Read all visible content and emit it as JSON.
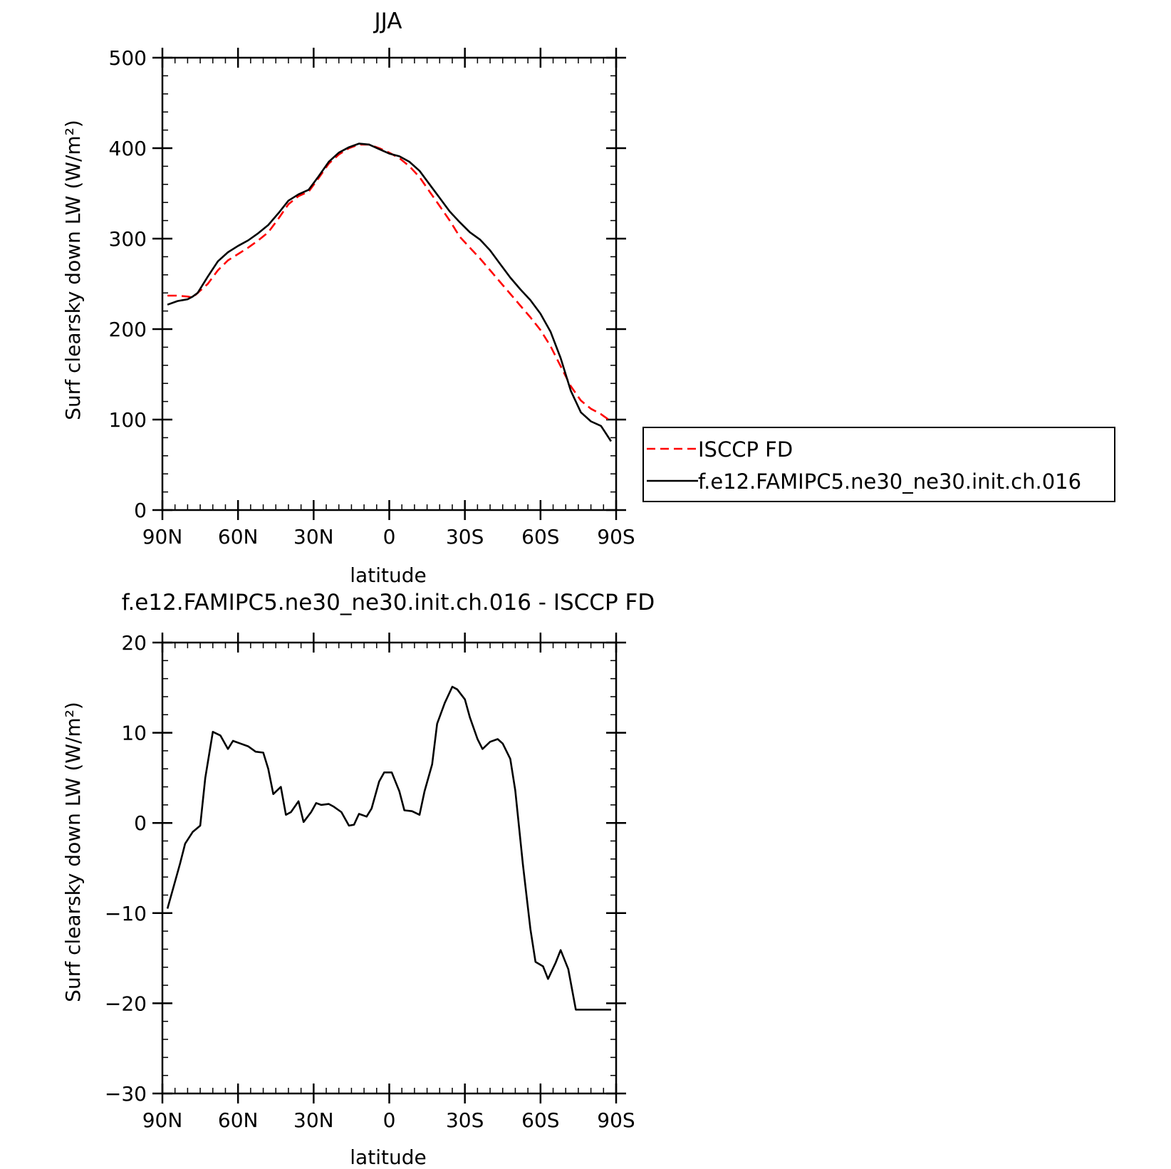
{
  "chart_data": [
    {
      "type": "line",
      "title": "JJA",
      "xlabel": "latitude",
      "ylabel": "Surf clearsky down LW (W/m²)",
      "xlim": [
        90,
        -90
      ],
      "ylim": [
        0,
        500
      ],
      "x_ticks": [
        90,
        60,
        30,
        0,
        -30,
        -60,
        -90
      ],
      "x_tick_labels": [
        "90N",
        "60N",
        "30N",
        "0",
        "30S",
        "60S",
        "90S"
      ],
      "y_ticks": [
        0,
        100,
        200,
        300,
        400,
        500
      ],
      "y_tick_labels": [
        "0",
        "100",
        "200",
        "300",
        "400",
        "500"
      ],
      "legend": "right",
      "series": [
        {
          "name": "ISCCP FD",
          "color": "#ff0000",
          "style": "dashed",
          "x": [
            88,
            84,
            80,
            78,
            76,
            72,
            68,
            64,
            60,
            56,
            52,
            48,
            44,
            40,
            36,
            32,
            28,
            24,
            20,
            16,
            12,
            8,
            4,
            0,
            -4,
            -8,
            -12,
            -16,
            -20,
            -24,
            -28,
            -32,
            -36,
            -40,
            -44,
            -48,
            -52,
            -56,
            -60,
            -64,
            -68,
            -72,
            -76,
            -80,
            -84,
            -88
          ],
          "y": [
            237,
            237,
            236,
            235,
            240,
            250,
            265,
            276,
            283,
            290,
            298,
            307,
            322,
            338,
            347,
            352,
            367,
            383,
            393,
            400,
            404,
            404,
            400,
            395,
            389,
            380,
            368,
            352,
            336,
            320,
            302,
            290,
            278,
            265,
            252,
            239,
            226,
            213,
            199,
            181,
            159,
            137,
            121,
            112,
            106,
            98
          ]
        },
        {
          "name": "f.e12.FAMIPC5.ne30_ne30.init.ch.016",
          "color": "#000000",
          "style": "solid",
          "x": [
            88,
            84,
            80,
            78,
            76,
            72,
            68,
            64,
            60,
            56,
            52,
            48,
            44,
            40,
            36,
            32,
            28,
            24,
            20,
            16,
            12,
            8,
            4,
            0,
            -4,
            -8,
            -12,
            -16,
            -20,
            -24,
            -28,
            -32,
            -36,
            -40,
            -44,
            -48,
            -52,
            -56,
            -60,
            -64,
            -68,
            -72,
            -76,
            -80,
            -84,
            -88
          ],
          "y": [
            227,
            231,
            233,
            236,
            240,
            258,
            275,
            285,
            292,
            298,
            306,
            315,
            328,
            342,
            349,
            354,
            369,
            385,
            395,
            401,
            405,
            404,
            399,
            394,
            391,
            385,
            375,
            360,
            345,
            330,
            318,
            307,
            299,
            287,
            272,
            257,
            244,
            232,
            217,
            197,
            168,
            132,
            108,
            98,
            93,
            76
          ]
        }
      ]
    },
    {
      "type": "line",
      "title": "f.e12.FAMIPC5.ne30_ne30.init.ch.016 - ISCCP FD",
      "xlabel": "latitude",
      "ylabel": "Surf clearsky down LW (W/m²)",
      "xlim": [
        90,
        -90
      ],
      "ylim": [
        -30,
        20
      ],
      "x_ticks": [
        90,
        60,
        30,
        0,
        -30,
        -60,
        -90
      ],
      "x_tick_labels": [
        "90N",
        "60N",
        "30N",
        "0",
        "30S",
        "60S",
        "90S"
      ],
      "y_ticks": [
        -30,
        -20,
        -10,
        0,
        10,
        20
      ],
      "y_tick_labels": [
        "−30",
        "−20",
        "−10",
        "0",
        "10",
        "20"
      ],
      "series": [
        {
          "color": "#000000",
          "style": "solid",
          "x": [
            88,
            86,
            83,
            81,
            78,
            75,
            73,
            70,
            67,
            64,
            62,
            59,
            56,
            53,
            50,
            48,
            46,
            43,
            41,
            39,
            36,
            34,
            31,
            29,
            27,
            24,
            22,
            19,
            16,
            14,
            12,
            9,
            7,
            4,
            2,
            -1,
            -4,
            -6,
            -9,
            -12,
            -14,
            -17,
            -19,
            -22,
            -25,
            -27,
            -30,
            -32,
            -35,
            -37,
            -40,
            -43,
            -45,
            -48,
            -50,
            -53,
            -56,
            -58,
            -61,
            -63,
            -66,
            -68,
            -71,
            -74,
            -76,
            -79,
            -81,
            -84,
            -86,
            -88
          ],
          "y": [
            -9.5,
            -7.5,
            -4.5,
            -2.3,
            -1.0,
            -0.3,
            5.0,
            10.1,
            9.7,
            8.2,
            9.1,
            8.8,
            8.5,
            7.9,
            7.8,
            6.0,
            3.2,
            4.0,
            0.9,
            1.2,
            2.4,
            0.1,
            1.2,
            2.2,
            2.0,
            2.1,
            1.8,
            1.2,
            -0.3,
            -0.2,
            1.0,
            0.7,
            1.6,
            4.6,
            5.6,
            5.6,
            3.5,
            1.4,
            1.3,
            0.9,
            3.5,
            6.5,
            11.0,
            13.3,
            15.1,
            14.8,
            13.7,
            11.7,
            9.3,
            8.2,
            9.0,
            9.3,
            8.8,
            7.1,
            3.6,
            -4.6,
            -11.8,
            -15.4,
            -15.9,
            -17.3,
            -15.5,
            -14.1,
            -16.2,
            -20.7,
            -20.7,
            -20.7,
            -20.7,
            -20.7,
            -20.7,
            -20.7
          ]
        }
      ]
    }
  ],
  "legend": {
    "items": [
      {
        "label": "ISCCP FD",
        "color": "#ff0000",
        "style": "dashed"
      },
      {
        "label": "f.e12.FAMIPC5.ne30_ne30.init.ch.016",
        "color": "#000000",
        "style": "solid"
      }
    ]
  }
}
